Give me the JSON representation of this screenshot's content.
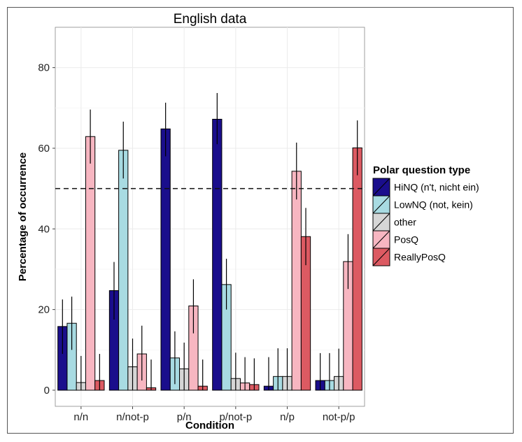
{
  "chart_data": {
    "type": "bar",
    "title": "English data",
    "xlabel": "Condition",
    "ylabel": "Percentage of occurrence",
    "ylim": [
      -4,
      90
    ],
    "yticks": [
      0,
      20,
      40,
      60,
      80
    ],
    "grid": true,
    "reference_line": 50,
    "categories": [
      "n/n",
      "n/not-p",
      "p/n",
      "p/not-p",
      "n/p",
      "not-p/p"
    ],
    "legend_title": "Polar question type",
    "legend_position": "right",
    "series": [
      {
        "name": "HiNQ (n't, nicht ein)",
        "color": "#1a0e8c",
        "values": [
          15.8,
          24.7,
          64.8,
          67.2,
          1.0,
          2.4
        ],
        "err_low": [
          9.0,
          17.5,
          58.0,
          61.0,
          0.0,
          0.0
        ],
        "err_high": [
          22.5,
          31.8,
          71.3,
          73.7,
          8.2,
          9.2
        ]
      },
      {
        "name": "LowNQ (not, kein)",
        "color": "#a8dbe2",
        "values": [
          16.6,
          59.5,
          8.0,
          26.2,
          3.4,
          2.4
        ],
        "err_low": [
          10.0,
          52.5,
          1.5,
          20.0,
          0.0,
          0.0
        ],
        "err_high": [
          23.2,
          66.6,
          14.6,
          32.6,
          10.4,
          9.2
        ]
      },
      {
        "name": "other",
        "color": "#d6d6d6",
        "values": [
          1.9,
          5.8,
          5.3,
          2.9,
          3.4,
          3.4
        ],
        "err_low": [
          0.0,
          0.0,
          0.0,
          0.0,
          0.0,
          0.0
        ],
        "err_high": [
          8.5,
          12.8,
          11.8,
          9.3,
          10.4,
          10.3
        ]
      },
      {
        "name": "PosQ",
        "color": "#f7b6c1",
        "values": [
          62.9,
          9.0,
          20.9,
          1.8,
          54.3,
          31.9
        ],
        "err_low": [
          56.2,
          2.4,
          14.1,
          0.0,
          47.3,
          25.1
        ],
        "err_high": [
          69.6,
          16.0,
          27.5,
          8.2,
          61.4,
          38.7
        ]
      },
      {
        "name": "ReallyPosQ",
        "color": "#dc5a62",
        "values": [
          2.4,
          0.6,
          1.0,
          1.4,
          38.1,
          60.1
        ],
        "err_low": [
          0.0,
          0.0,
          0.0,
          0.0,
          31.0,
          53.3
        ],
        "err_high": [
          9.0,
          7.6,
          7.6,
          7.9,
          45.2,
          66.9
        ]
      }
    ]
  }
}
